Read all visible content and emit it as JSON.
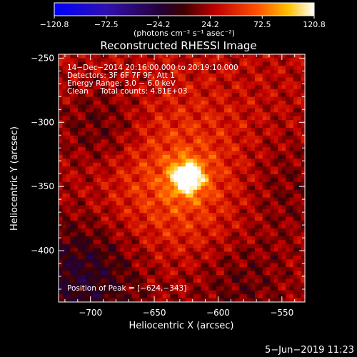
{
  "chart_data": {
    "type": "heatmap",
    "title": "Reconstructed RHESSI Image",
    "xlabel": "Heliocentric X (arcsec)",
    "ylabel": "Heliocentric Y (arcsec)",
    "xlim": [
      -725,
      -532
    ],
    "ylim": [
      -440,
      -247
    ],
    "x_ticks": [
      -700,
      -650,
      -600,
      -550
    ],
    "y_ticks": [
      -400,
      -350,
      -300,
      -250
    ],
    "x_tick_labels": [
      "−700",
      "−650",
      "−600",
      "−550"
    ],
    "y_tick_labels": [
      "−400",
      "−350",
      "−300",
      "−250"
    ],
    "colorbar": {
      "min": -120.8,
      "max": 120.8,
      "ticks": [
        -120.8,
        -72.5,
        -24.2,
        24.2,
        72.5,
        120.8
      ],
      "tick_labels": [
        "−120.8",
        "−72.5",
        "−24.2",
        "24.2",
        "72.5",
        "120.8"
      ],
      "unit_label": "(photons cm⁻² s⁻¹ asec⁻²)",
      "colors": [
        "#0000ff",
        "#4a1090",
        "#000000",
        "#b00000",
        "#ff3000",
        "#ffb000",
        "#ffffff"
      ]
    },
    "peak": {
      "x": -624,
      "y": -343,
      "value": 120.8
    },
    "annotations": [
      "14−Dec−2014 20:16:00.000 to 20:19:10.000",
      "Detectors: 3F 6F 7F 9F, Att 1",
      "Energy Range: 3.0 − 6.0 keV",
      "Clean     Total counts: 4.81E+03"
    ],
    "peak_label": "Position of Peak = [−624,−343]"
  },
  "footer": {
    "timestamp": "5−Jun−2019 11:23"
  }
}
